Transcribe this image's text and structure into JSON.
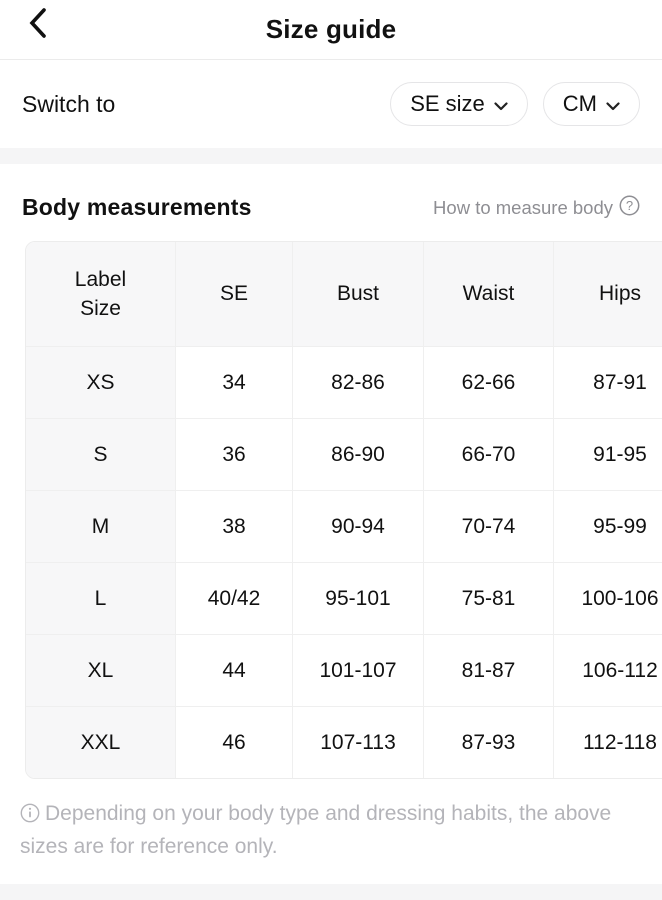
{
  "nav": {
    "title": "Size guide"
  },
  "switch_row": {
    "label": "Switch to",
    "size_button": "SE size",
    "unit_button": "CM"
  },
  "body_measurements": {
    "title": "Body measurements",
    "help_link": "How to measure body",
    "table": {
      "columns": [
        "Label Size",
        "SE",
        "Bust",
        "Waist",
        "Hips"
      ],
      "rows": [
        [
          "XS",
          "34",
          "82-86",
          "62-66",
          "87-91"
        ],
        [
          "S",
          "36",
          "86-90",
          "66-70",
          "91-95"
        ],
        [
          "M",
          "38",
          "90-94",
          "70-74",
          "95-99"
        ],
        [
          "L",
          "40/42",
          "95-101",
          "75-81",
          "100-106"
        ],
        [
          "XL",
          "44",
          "101-107",
          "81-87",
          "106-112"
        ],
        [
          "XXL",
          "46",
          "107-113",
          "87-93",
          "112-118"
        ]
      ]
    }
  },
  "footnote": "Depending on your body type and dressing habits, the above sizes are for reference only.",
  "colors": {
    "text": "#111111",
    "muted_text": "#8e8e93",
    "footnote_text": "#b4b4b9",
    "band": "#f5f5f6",
    "cell_shade": "#f7f7f8",
    "table_border": "#ececec",
    "pill_border": "#e5e5e7"
  }
}
